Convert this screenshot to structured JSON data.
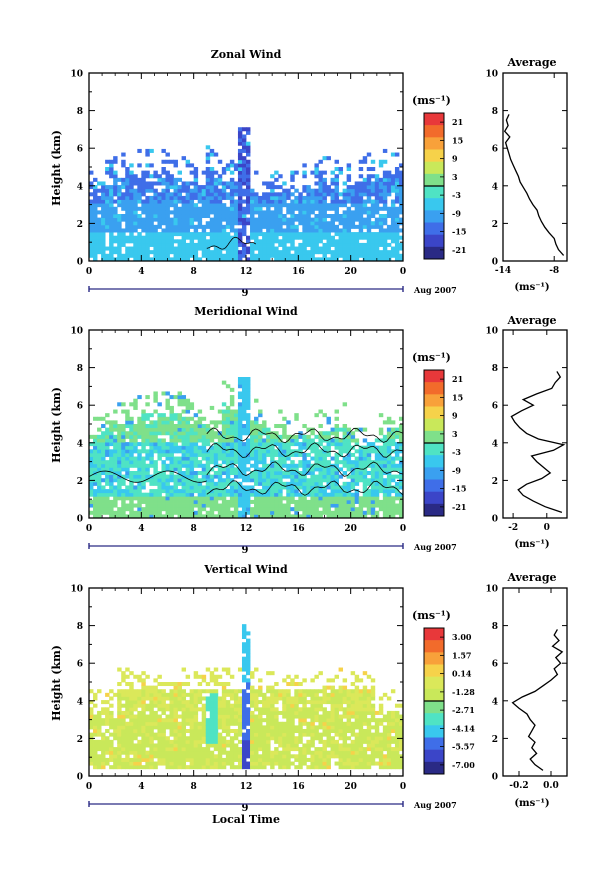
{
  "chart_data": [
    {
      "type": "heatmap",
      "title": "Zonal Wind",
      "ylabel": "Height (km)",
      "xlim": [
        0,
        24
      ],
      "ylim": [
        0,
        10
      ],
      "xticks": [
        "0",
        "4",
        "8",
        "12",
        "16",
        "20",
        "0"
      ],
      "yticks": [
        "0",
        "2",
        "4",
        "6",
        "8",
        "10"
      ],
      "day_label": "9",
      "date_label": "Aug 2007",
      "colorbar": {
        "unit": "(ms⁻¹)",
        "ticks": [
          "21",
          "15",
          "9",
          "3",
          "-3",
          "-9",
          "-15",
          "-21"
        ],
        "colors": [
          "#e8383a",
          "#f26b2b",
          "#f8a13a",
          "#f6d24a",
          "#c9e85a",
          "#7fe08a",
          "#4fe3c4",
          "#39c8ee",
          "#3aa0f0",
          "#3f6ee8",
          "#3b45c8",
          "#2a2a85"
        ]
      },
      "profile": {
        "title": "Average",
        "xlabel": "(ms⁻¹)",
        "xticks": [
          "-14",
          "-8"
        ],
        "xlim": [
          -14,
          -6.5
        ],
        "height": [
          0.3,
          0.6,
          0.9,
          1.2,
          1.5,
          1.8,
          2.1,
          2.4,
          2.7,
          3.0,
          3.3,
          3.6,
          3.9,
          4.2,
          4.5,
          4.8,
          5.1,
          5.4,
          5.7,
          6.0,
          6.3,
          6.6,
          6.9,
          7.2,
          7.5,
          7.8
        ],
        "values": [
          -6.9,
          -7.5,
          -7.8,
          -8.0,
          -8.6,
          -9.1,
          -9.5,
          -9.8,
          -10.0,
          -10.5,
          -10.9,
          -11.2,
          -11.6,
          -12.0,
          -12.2,
          -12.5,
          -12.8,
          -13.1,
          -13.3,
          -13.5,
          -13.7,
          -13.2,
          -13.8,
          -13.4,
          -13.6,
          -13.3
        ]
      }
    },
    {
      "type": "heatmap",
      "title": "Meridional Wind",
      "ylabel": "Height (km)",
      "xlim": [
        0,
        24
      ],
      "ylim": [
        0,
        10
      ],
      "xticks": [
        "0",
        "4",
        "8",
        "12",
        "16",
        "20",
        "0"
      ],
      "yticks": [
        "0",
        "2",
        "4",
        "6",
        "8",
        "10"
      ],
      "day_label": "9",
      "date_label": "Aug 2007",
      "colorbar": {
        "unit": "(ms⁻¹)",
        "ticks": [
          "21",
          "15",
          "9",
          "3",
          "-3",
          "-9",
          "-15",
          "-21"
        ],
        "colors": [
          "#e8383a",
          "#f26b2b",
          "#f8a13a",
          "#f6d24a",
          "#c9e85a",
          "#7fe08a",
          "#4fe3c4",
          "#39c8ee",
          "#3aa0f0",
          "#3f6ee8",
          "#3b45c8",
          "#2a2a85"
        ]
      },
      "profile": {
        "title": "Average",
        "xlabel": "(ms⁻¹)",
        "xticks": [
          "-2",
          "0"
        ],
        "xlim": [
          -2.6,
          1.2
        ],
        "height": [
          0.3,
          0.6,
          0.9,
          1.2,
          1.5,
          1.8,
          2.1,
          2.4,
          2.7,
          3.0,
          3.3,
          3.6,
          3.9,
          4.2,
          4.5,
          4.8,
          5.1,
          5.4,
          5.7,
          6.0,
          6.3,
          6.6,
          6.9,
          7.2,
          7.5,
          7.8
        ],
        "values": [
          0.9,
          -0.1,
          -0.8,
          -1.4,
          -1.7,
          -1.2,
          -0.3,
          0.2,
          -0.2,
          -0.6,
          -0.9,
          0.4,
          1.0,
          -0.5,
          -1.2,
          -1.6,
          -1.9,
          -2.1,
          -1.5,
          -0.8,
          -1.4,
          -0.6,
          0.3,
          0.5,
          0.8,
          0.6
        ]
      }
    },
    {
      "type": "heatmap",
      "title": "Vertical Wind",
      "xlabel": "Local Time",
      "ylabel": "Height (km)",
      "xlim": [
        0,
        24
      ],
      "ylim": [
        0,
        10
      ],
      "xticks": [
        "0",
        "4",
        "8",
        "12",
        "16",
        "20",
        "0"
      ],
      "yticks": [
        "0",
        "2",
        "4",
        "6",
        "8",
        "10"
      ],
      "day_label": "9",
      "date_label": "Aug 2007",
      "colorbar": {
        "unit": "(ms⁻¹)",
        "ticks": [
          "3.00",
          "1.57",
          "0.14",
          "-1.28",
          "-2.71",
          "-4.14",
          "-5.57",
          "-7.00"
        ],
        "colors": [
          "#e8383a",
          "#f26b2b",
          "#f8a13a",
          "#f6d24a",
          "#dbe85a",
          "#c9e85a",
          "#7fe08a",
          "#4fe3c4",
          "#39c8ee",
          "#3f6ee8",
          "#3b45c8",
          "#2a2a85"
        ]
      },
      "profile": {
        "title": "Average",
        "xlabel": "(ms⁻¹)",
        "xticks": [
          "-0.2",
          "0.0"
        ],
        "xlim": [
          -0.3,
          0.1
        ],
        "height": [
          0.3,
          0.6,
          0.9,
          1.2,
          1.5,
          1.8,
          2.1,
          2.4,
          2.7,
          3.0,
          3.3,
          3.6,
          3.9,
          4.2,
          4.5,
          4.8,
          5.1,
          5.4,
          5.7,
          6.0,
          6.3,
          6.6,
          6.9,
          7.2,
          7.5,
          7.8
        ],
        "values": [
          -0.05,
          -0.1,
          -0.13,
          -0.09,
          -0.12,
          -0.1,
          -0.14,
          -0.12,
          -0.1,
          -0.13,
          -0.15,
          -0.2,
          -0.24,
          -0.18,
          -0.1,
          -0.05,
          0.0,
          0.04,
          0.02,
          0.06,
          0.03,
          0.07,
          0.01,
          0.05,
          0.02,
          0.04
        ]
      }
    }
  ]
}
